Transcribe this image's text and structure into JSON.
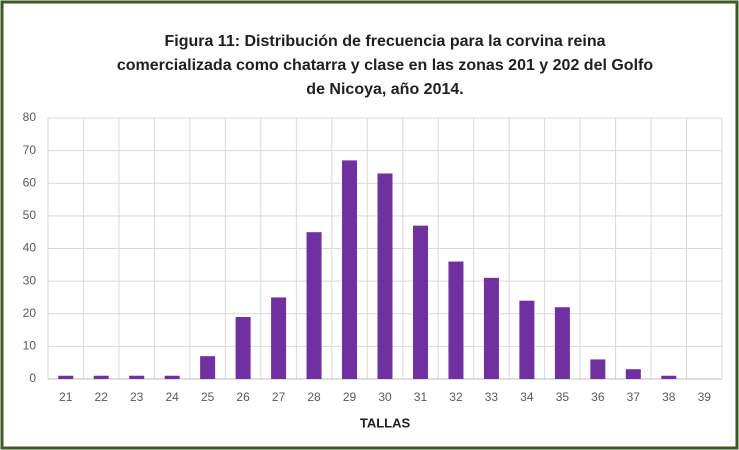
{
  "chart_data": {
    "type": "bar",
    "title": [
      "Figura 11: Distribución de frecuencia para la corvina reina",
      "comercializada como chatarra y clase en las zonas 201 y 202 del Golfo",
      "de Nicoya, año 2014."
    ],
    "x_label": "TALLAS",
    "categories": [
      "21",
      "22",
      "23",
      "24",
      "25",
      "26",
      "27",
      "28",
      "29",
      "30",
      "31",
      "32",
      "33",
      "34",
      "35",
      "36",
      "37",
      "38",
      "39"
    ],
    "values": [
      1,
      1,
      1,
      1,
      7,
      19,
      25,
      45,
      67,
      63,
      47,
      36,
      31,
      24,
      22,
      6,
      3,
      1,
      0
    ],
    "color": "#7030a0",
    "ylim": [
      0,
      80
    ],
    "yticks": [
      0,
      10,
      20,
      30,
      40,
      50,
      60,
      70,
      80
    ],
    "grid": true
  }
}
